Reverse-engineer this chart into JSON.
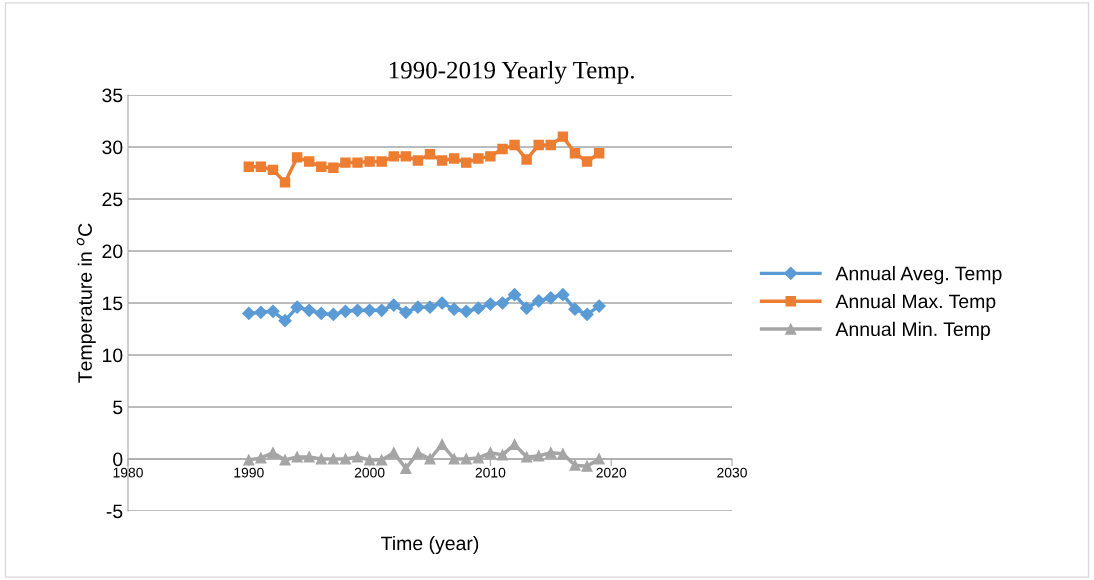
{
  "chart_data": {
    "type": "line",
    "title": "1990-2019 Yearly Temp.",
    "xlabel": "Time (year)",
    "ylabel": "Temperature in $^{o}$C",
    "x": [
      1990,
      1991,
      1992,
      1993,
      1994,
      1995,
      1996,
      1997,
      1998,
      1999,
      2000,
      2001,
      2002,
      2003,
      2004,
      2005,
      2006,
      2007,
      2008,
      2009,
      2010,
      2011,
      2012,
      2013,
      2014,
      2015,
      2016,
      2017,
      2018,
      2019
    ],
    "series": [
      {
        "name": "Annual Aveg. Temp",
        "color": "#5b9bd5",
        "marker": "diamond",
        "values": [
          14.0,
          14.1,
          14.2,
          13.3,
          14.6,
          14.3,
          14.0,
          13.9,
          14.2,
          14.3,
          14.3,
          14.3,
          14.8,
          14.1,
          14.6,
          14.6,
          15.0,
          14.4,
          14.2,
          14.5,
          14.9,
          15.0,
          15.8,
          14.5,
          15.2,
          15.5,
          15.8,
          14.4,
          13.9,
          14.7
        ]
      },
      {
        "name": "Annual Max. Temp",
        "color": "#ed7d31",
        "marker": "square",
        "values": [
          28.1,
          28.1,
          27.8,
          26.6,
          29.0,
          28.6,
          28.1,
          28.0,
          28.5,
          28.5,
          28.6,
          28.6,
          29.1,
          29.1,
          28.7,
          29.3,
          28.7,
          28.9,
          28.5,
          28.9,
          29.1,
          29.8,
          30.2,
          28.8,
          30.2,
          30.2,
          31.0,
          29.4,
          28.6,
          29.4
        ]
      },
      {
        "name": "Annual Min. Temp",
        "color": "#a5a5a5",
        "marker": "triangle",
        "values": [
          -0.1,
          0.1,
          0.6,
          -0.1,
          0.2,
          0.2,
          0.0,
          0.0,
          0.0,
          0.2,
          -0.1,
          -0.1,
          0.6,
          -0.9,
          0.6,
          0.0,
          1.4,
          0.0,
          0.0,
          0.1,
          0.6,
          0.4,
          1.4,
          0.2,
          0.3,
          0.6,
          0.5,
          -0.6,
          -0.7,
          0.0
        ]
      }
    ],
    "xlim": [
      1980,
      2030
    ],
    "xticks": [
      1980,
      1990,
      2000,
      2010,
      2020,
      2030
    ],
    "ylim": [
      -5,
      35
    ],
    "yticks": [
      -5,
      0,
      5,
      10,
      15,
      20,
      25,
      30,
      35
    ],
    "grid": "y",
    "legend": "right",
    "line_style": "solid"
  }
}
